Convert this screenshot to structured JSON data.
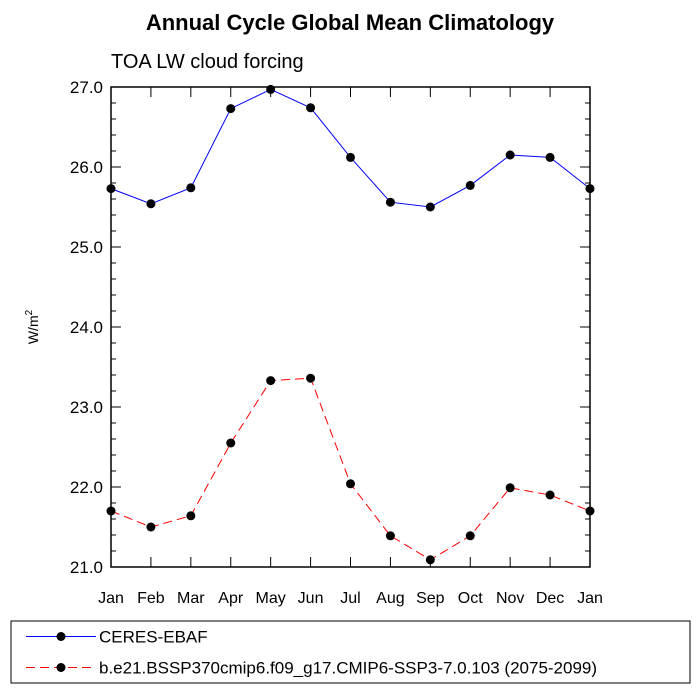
{
  "chart_data": {
    "type": "line",
    "title": "Annual Cycle Global Mean Climatology",
    "subtitle": "TOA LW cloud forcing",
    "ylabel": "W/m",
    "ylabel_superscript": "2",
    "ylim": [
      21.0,
      27.0
    ],
    "yticks": [
      "21.0",
      "22.0",
      "23.0",
      "24.0",
      "25.0",
      "26.0",
      "27.0"
    ],
    "ytick_values": [
      21,
      22,
      23,
      24,
      25,
      26,
      27
    ],
    "categories": [
      "Jan",
      "Feb",
      "Mar",
      "Apr",
      "May",
      "Jun",
      "Jul",
      "Aug",
      "Sep",
      "Oct",
      "Nov",
      "Dec",
      "Jan"
    ],
    "series": [
      {
        "name": "CERES-EBAF",
        "color": "#0000ff",
        "style": "solid",
        "values": [
          25.73,
          25.54,
          25.74,
          26.73,
          26.97,
          26.74,
          26.12,
          25.56,
          25.5,
          25.77,
          26.15,
          26.12,
          25.73
        ]
      },
      {
        "name": "b.e21.BSSP370cmip6.f09_g17.CMIP6-SSP3-7.0.103 (2075-2099)",
        "color": "#ff0000",
        "style": "dashed",
        "values": [
          21.7,
          21.5,
          21.64,
          22.55,
          23.33,
          23.36,
          22.04,
          21.39,
          21.09,
          21.39,
          21.99,
          21.9,
          21.7
        ]
      }
    ],
    "marker": "filled-circle",
    "marker_color": "#000000",
    "grid": false,
    "legend_placement": "bottom-left"
  }
}
